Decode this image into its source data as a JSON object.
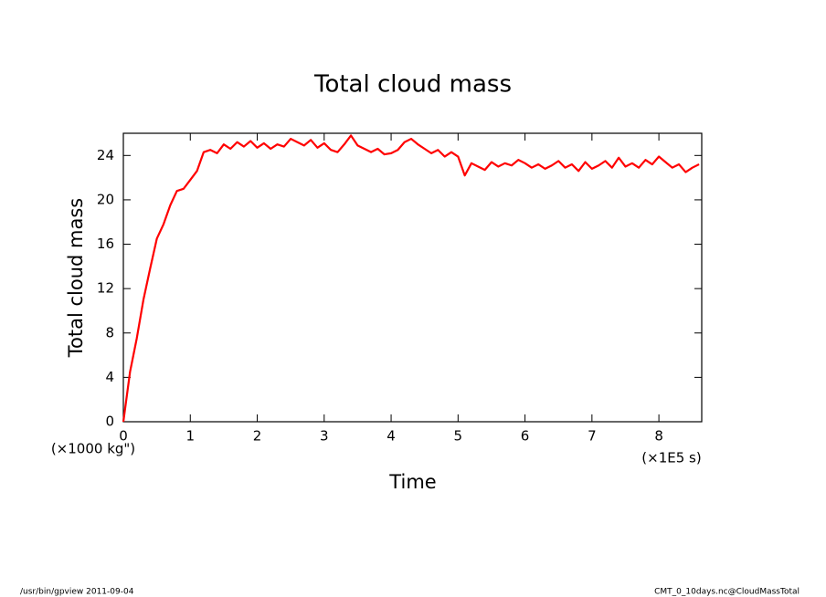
{
  "chart_data": {
    "type": "line",
    "title": "Total cloud mass",
    "x_label": "Time",
    "y_label": "Total cloud mass",
    "x_unit": "(×1E5 s)",
    "y_unit": "(×1000 kg\")",
    "footer_left": "/usr/bin/gpview  2011-09-04",
    "footer_right": "CMT_0_10days.nc@CloudMassTotal",
    "x": [
      0,
      0.1,
      0.2,
      0.3,
      0.4,
      0.5,
      0.6,
      0.7,
      0.8,
      0.9,
      1.0,
      1.1,
      1.2,
      1.3,
      1.4,
      1.5,
      1.6,
      1.7,
      1.8,
      1.9,
      2.0,
      2.1,
      2.2,
      2.3,
      2.4,
      2.5,
      2.6,
      2.7,
      2.8,
      2.9,
      3.0,
      3.1,
      3.2,
      3.3,
      3.4,
      3.5,
      3.6,
      3.7,
      3.8,
      3.9,
      4.0,
      4.1,
      4.2,
      4.3,
      4.4,
      4.5,
      4.6,
      4.7,
      4.8,
      4.9,
      5.0,
      5.1,
      5.2,
      5.3,
      5.4,
      5.5,
      5.6,
      5.7,
      5.8,
      5.9,
      6.0,
      6.1,
      6.2,
      6.3,
      6.4,
      6.5,
      6.6,
      6.7,
      6.8,
      6.9,
      7.0,
      7.1,
      7.2,
      7.3,
      7.4,
      7.5,
      7.6,
      7.7,
      7.8,
      7.9,
      8.0,
      8.1,
      8.2,
      8.3,
      8.4,
      8.5,
      8.6
    ],
    "series": [
      {
        "color": "#ff0000",
        "values": [
          0,
          4.5,
          7.5,
          11,
          13.8,
          16.5,
          17.8,
          19.5,
          20.8,
          21,
          21.8,
          22.6,
          24.3,
          24.5,
          24.2,
          25,
          24.6,
          25.2,
          24.8,
          25.3,
          24.7,
          25.1,
          24.6,
          25,
          24.8,
          25.5,
          25.2,
          24.9,
          25.4,
          24.7,
          25.1,
          24.5,
          24.3,
          25,
          25.8,
          24.9,
          24.6,
          24.3,
          24.6,
          24.1,
          24.2,
          24.5,
          25.2,
          25.5,
          25,
          24.6,
          24.2,
          24.5,
          23.9,
          24.3,
          23.9,
          22.2,
          23.3,
          23,
          22.7,
          23.4,
          23,
          23.3,
          23.1,
          23.6,
          23.3,
          22.9,
          23.2,
          22.8,
          23.1,
          23.5,
          22.9,
          23.2,
          22.6,
          23.4,
          22.8,
          23.1,
          23.5,
          22.9,
          23.8,
          23,
          23.3,
          22.9,
          23.6,
          23.2,
          23.9,
          23.4,
          22.9,
          23.2,
          22.5,
          22.9,
          23.2
        ]
      }
    ],
    "xlim": [
      0,
      8.64
    ],
    "ylim": [
      0,
      26
    ],
    "xticks": [
      0,
      1,
      2,
      3,
      4,
      5,
      6,
      7,
      8
    ],
    "yticks": [
      0,
      4,
      8,
      12,
      16,
      20,
      24
    ]
  }
}
